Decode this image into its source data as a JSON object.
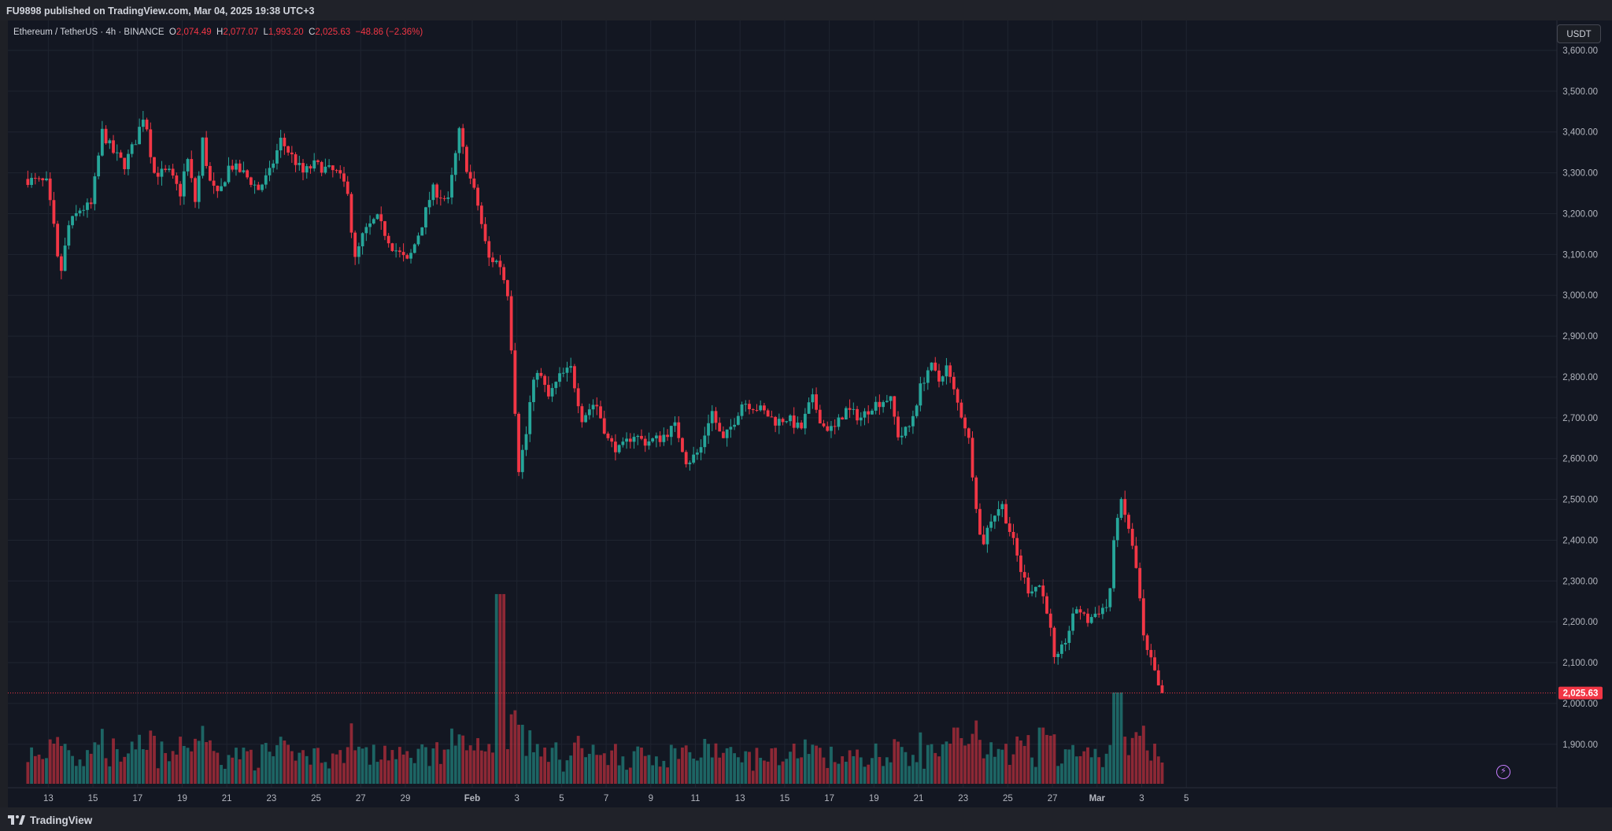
{
  "header": {
    "published": "FU9898 published on TradingView.com, Mar 04, 2025 19:38 UTC+3"
  },
  "footer": {
    "brand": "TradingView"
  },
  "legend": {
    "symbol": "Ethereum / TetherUS · 4h · BINANCE",
    "o_label": "O",
    "o": "2,074.49",
    "h_label": "H",
    "h": "2,077.07",
    "l_label": "L",
    "l": "1,993.20",
    "c_label": "C",
    "c": "2,025.63",
    "change": "−48.86 (−2.36%)"
  },
  "currency_button": "USDT",
  "colors": {
    "up": "#26a69a",
    "down": "#f23645",
    "background": "#131722",
    "grid": "#1f2430",
    "text": "#b2b5be",
    "last_price": "#f23645"
  },
  "chart_data": {
    "type": "candlestick",
    "title": "Ethereum / TetherUS · 4h · BINANCE",
    "interval": "4h",
    "ylim": [
      1830,
      3740
    ],
    "y_ticks": [
      "3,600.00",
      "3,500.00",
      "3,400.00",
      "3,300.00",
      "3,200.00",
      "3,100.00",
      "3,000.00",
      "2,900.00",
      "2,800.00",
      "2,700.00",
      "2,600.00",
      "2,500.00",
      "2,400.00",
      "2,300.00",
      "2,200.00",
      "2,100.00",
      "2,000.00",
      "1,900.00"
    ],
    "y_tick_values": [
      3600,
      3500,
      3400,
      3300,
      3200,
      3100,
      3000,
      2900,
      2800,
      2700,
      2600,
      2500,
      2400,
      2300,
      2200,
      2100,
      2000,
      1900
    ],
    "x_ticks": [
      "13",
      "15",
      "17",
      "19",
      "21",
      "23",
      "25",
      "27",
      "29",
      "Feb",
      "3",
      "5",
      "7",
      "9",
      "11",
      "13",
      "15",
      "17",
      "19",
      "21",
      "23",
      "25",
      "27",
      "Mar",
      "3",
      "5"
    ],
    "x_tick_days": [
      1,
      3,
      5,
      7,
      9,
      11,
      13,
      15,
      17,
      20,
      22,
      24,
      26,
      28,
      30,
      32,
      34,
      36,
      38,
      40,
      42,
      44,
      46,
      48,
      50,
      52
    ],
    "x_start": "Jan 12, 2025",
    "last_price": 2025.63,
    "last_price_label": "2,025.63",
    "price_anchors": [
      [
        0.0,
        3285
      ],
      [
        1.0,
        3275
      ],
      [
        1.3,
        3180
      ],
      [
        1.6,
        3040
      ],
      [
        2.0,
        3170
      ],
      [
        2.5,
        3210
      ],
      [
        3.0,
        3220
      ],
      [
        3.5,
        3400
      ],
      [
        4.0,
        3350
      ],
      [
        4.5,
        3320
      ],
      [
        5.0,
        3380
      ],
      [
        5.4,
        3450
      ],
      [
        5.8,
        3300
      ],
      [
        6.5,
        3300
      ],
      [
        7.0,
        3250
      ],
      [
        7.3,
        3340
      ],
      [
        7.7,
        3220
      ],
      [
        8.0,
        3380
      ],
      [
        8.3,
        3280
      ],
      [
        8.7,
        3240
      ],
      [
        9.2,
        3320
      ],
      [
        9.8,
        3300
      ],
      [
        10.5,
        3260
      ],
      [
        11.0,
        3300
      ],
      [
        11.5,
        3380
      ],
      [
        12.0,
        3340
      ],
      [
        12.5,
        3300
      ],
      [
        13.0,
        3320
      ],
      [
        13.5,
        3310
      ],
      [
        14.0,
        3300
      ],
      [
        14.5,
        3260
      ],
      [
        14.8,
        3080
      ],
      [
        15.2,
        3150
      ],
      [
        15.8,
        3190
      ],
      [
        16.5,
        3120
      ],
      [
        17.2,
        3080
      ],
      [
        17.8,
        3170
      ],
      [
        18.3,
        3260
      ],
      [
        19.0,
        3230
      ],
      [
        19.5,
        3400
      ],
      [
        19.8,
        3320
      ],
      [
        20.3,
        3230
      ],
      [
        20.8,
        3090
      ],
      [
        21.3,
        3080
      ],
      [
        21.7,
        3000
      ],
      [
        22.0,
        2720
      ],
      [
        22.1,
        2560
      ],
      [
        22.5,
        2660
      ],
      [
        22.7,
        2750
      ],
      [
        23.0,
        2820
      ],
      [
        23.5,
        2750
      ],
      [
        24.0,
        2800
      ],
      [
        24.5,
        2820
      ],
      [
        25.0,
        2700
      ],
      [
        25.6,
        2740
      ],
      [
        26.2,
        2640
      ],
      [
        26.7,
        2620
      ],
      [
        27.3,
        2660
      ],
      [
        27.8,
        2640
      ],
      [
        28.5,
        2650
      ],
      [
        29.2,
        2680
      ],
      [
        29.7,
        2590
      ],
      [
        30.3,
        2620
      ],
      [
        30.8,
        2720
      ],
      [
        31.3,
        2640
      ],
      [
        31.8,
        2690
      ],
      [
        32.2,
        2740
      ],
      [
        33.0,
        2720
      ],
      [
        33.7,
        2690
      ],
      [
        34.2,
        2700
      ],
      [
        34.8,
        2670
      ],
      [
        35.3,
        2750
      ],
      [
        35.8,
        2680
      ],
      [
        36.3,
        2670
      ],
      [
        36.8,
        2720
      ],
      [
        37.5,
        2700
      ],
      [
        38.0,
        2730
      ],
      [
        38.8,
        2750
      ],
      [
        39.2,
        2650
      ],
      [
        39.7,
        2680
      ],
      [
        40.2,
        2780
      ],
      [
        40.6,
        2830
      ],
      [
        41.0,
        2790
      ],
      [
        41.3,
        2830
      ],
      [
        41.8,
        2740
      ],
      [
        42.3,
        2660
      ],
      [
        42.6,
        2520
      ],
      [
        42.9,
        2380
      ],
      [
        43.3,
        2450
      ],
      [
        43.8,
        2490
      ],
      [
        44.3,
        2400
      ],
      [
        44.7,
        2320
      ],
      [
        45.0,
        2280
      ],
      [
        45.5,
        2290
      ],
      [
        45.9,
        2220
      ],
      [
        46.2,
        2090
      ],
      [
        46.7,
        2160
      ],
      [
        47.2,
        2240
      ],
      [
        47.6,
        2200
      ],
      [
        48.2,
        2230
      ],
      [
        48.6,
        2240
      ],
      [
        48.9,
        2430
      ],
      [
        49.1,
        2500
      ],
      [
        49.5,
        2430
      ],
      [
        49.9,
        2310
      ],
      [
        50.2,
        2140
      ],
      [
        50.6,
        2090
      ],
      [
        50.9,
        2020
      ]
    ],
    "volume_ylim": [
      0,
      140
    ],
    "volume_spikes": [
      [
        21.15,
        135
      ],
      [
        22.1,
        42
      ],
      [
        41.55,
        40
      ],
      [
        48.85,
        65
      ],
      [
        45.4,
        40
      ]
    ]
  }
}
